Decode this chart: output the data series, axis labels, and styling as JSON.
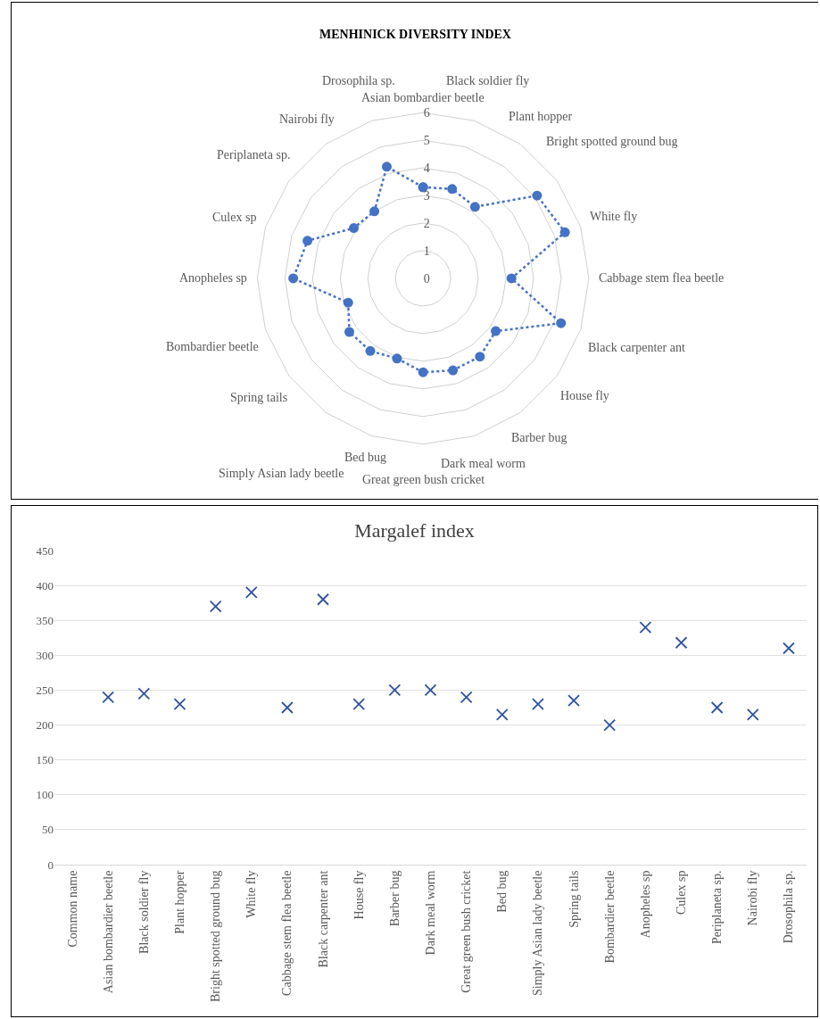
{
  "chart_data": [
    {
      "type": "radar",
      "title": "MENHINICK DIVERSITY INDEX",
      "categories": [
        "Asian bombardier beetle",
        "Black soldier fly",
        "Plant hopper",
        "Bright spotted ground bug",
        "White fly",
        "Cabbage stem flea beetle",
        "Black carpenter ant",
        "House fly",
        "Barber bug",
        "Dark meal worm",
        "Great green bush cricket",
        "Bed bug",
        "Simply Asian lady beetle",
        "Spring tails",
        "Bombardier beetle",
        "Anopheles sp",
        "Culex sp",
        "Periplaneta sp.",
        "Nairobi fly",
        "Drosophila sp."
      ],
      "series": [
        {
          "color": "#4472c4",
          "values": [
            3.3,
            3.4,
            3.2,
            5.1,
            5.4,
            3.2,
            5.25,
            3.25,
            3.5,
            3.5,
            3.4,
            3.05,
            3.25,
            3.3,
            2.85,
            4.7,
            4.4,
            3.1,
            3.0,
            4.25
          ]
        }
      ],
      "ylim": [
        0,
        6
      ],
      "yticks": [
        0,
        1,
        2,
        3,
        4,
        5,
        6
      ],
      "grid": true,
      "marker": "circle",
      "line_style": "dotted"
    },
    {
      "type": "scatter",
      "title": "Margalef index",
      "categories": [
        "Common name",
        "Asian bombardier beetle",
        "Black soldier fly",
        "Plant hopper",
        "Bright spotted ground bug",
        "White fly",
        "Cabbage stem flea beetle",
        "Black carpenter ant",
        "House fly",
        "Barber bug",
        "Dark meal worm",
        "Great green bush cricket",
        "Bed bug",
        "Simply Asian lady beetle",
        "Spring tails",
        "Bombardier beetle",
        "Anopheles sp",
        "Culex sp",
        "Periplaneta sp.",
        "Nairobi fly",
        "Drosophila sp."
      ],
      "series": [
        {
          "color": "#2f52a0",
          "values": [
            null,
            240,
            245,
            230,
            370,
            390,
            225,
            380,
            230,
            250,
            250,
            240,
            215,
            230,
            235,
            200,
            340,
            318,
            225,
            215,
            310
          ]
        }
      ],
      "ylim": [
        0,
        450
      ],
      "yticks": [
        0,
        50,
        100,
        150,
        200,
        250,
        300,
        350,
        400,
        450
      ],
      "grid": "y",
      "marker": "cross"
    }
  ]
}
